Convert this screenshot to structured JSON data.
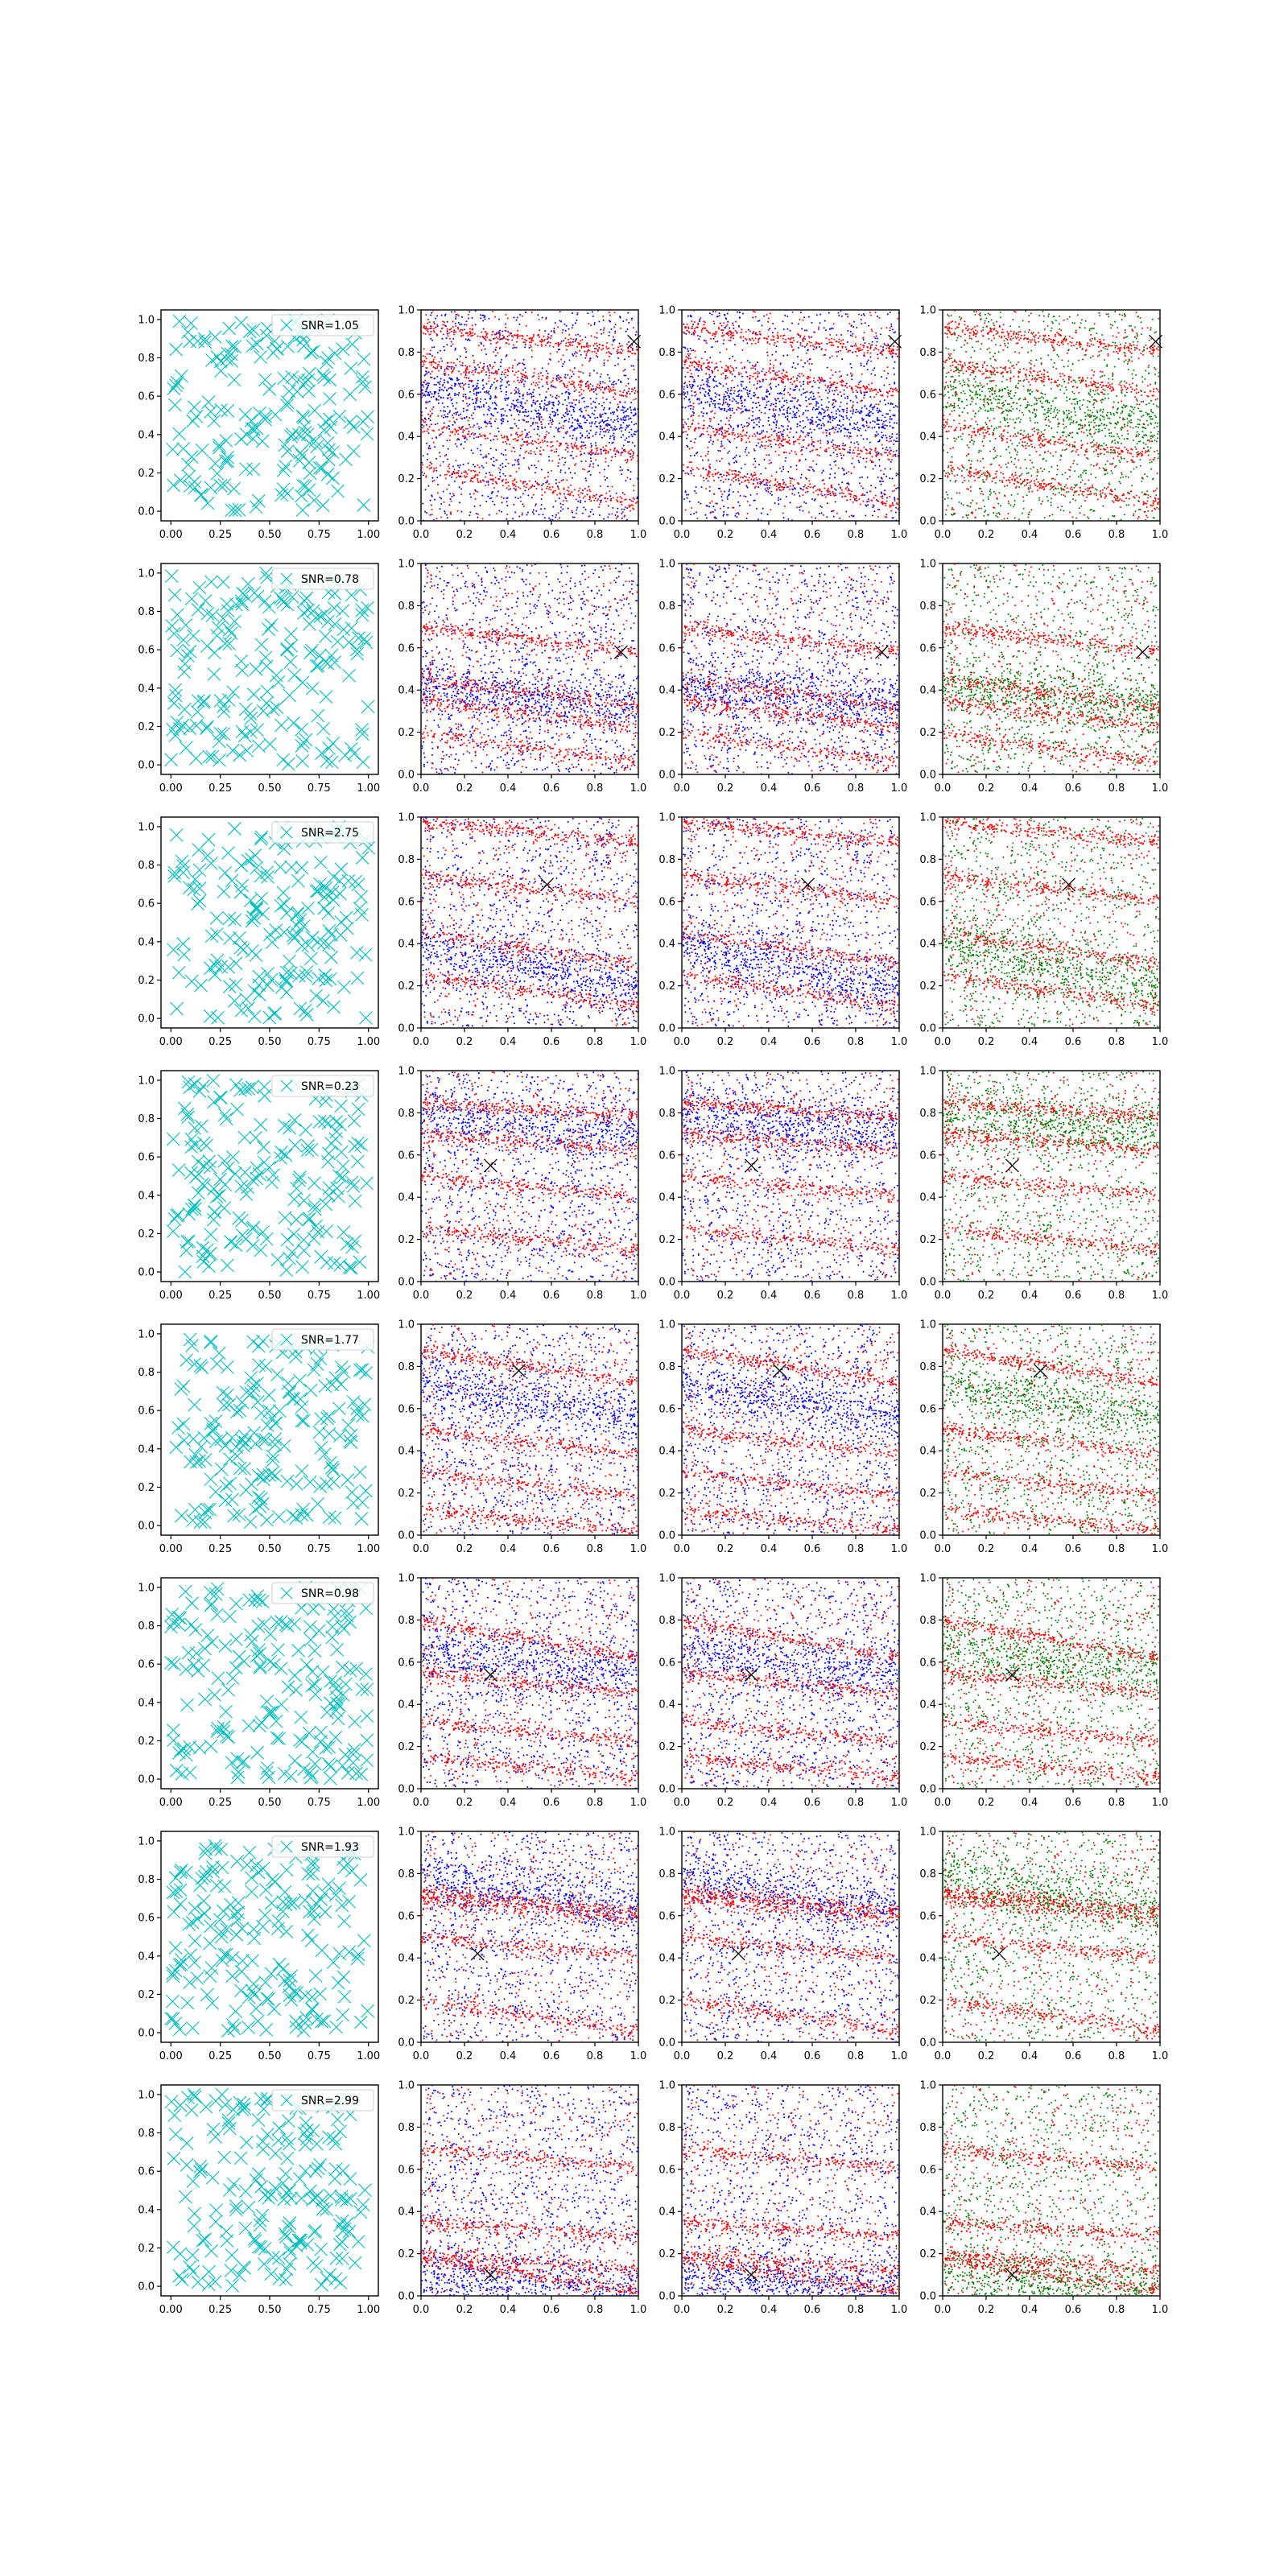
{
  "colors": {
    "sample_marker": "#00bfbf",
    "blue_points": "#0000ff",
    "red_points": "#ff0000",
    "green_points": "#008000",
    "true_marker": "#000000"
  },
  "chart_data": {
    "type": "scatter",
    "grid": false,
    "rows": 8,
    "columns": 4,
    "axis": {
      "first_column": {
        "xlim": [
          -0.05,
          1.05
        ],
        "ylim": [
          -0.05,
          1.05
        ],
        "xticks": [
          "0.00",
          "0.25",
          "0.50",
          "0.75",
          "1.00"
        ],
        "yticks": [
          "0.0",
          "0.2",
          "0.4",
          "0.6",
          "0.8",
          "1.0"
        ]
      },
      "other_columns": {
        "xlim": [
          0,
          1
        ],
        "ylim": [
          0,
          1
        ],
        "xticks": [
          "0.0",
          "0.2",
          "0.4",
          "0.6",
          "0.8",
          "1.0"
        ],
        "yticks": [
          "0.0",
          "0.2",
          "0.4",
          "0.6",
          "0.8",
          "1.0"
        ]
      }
    },
    "rows_data": [
      {
        "snr_label": "SNR=1.05",
        "true_point": [
          0.98,
          0.85
        ],
        "bands_red": [
          [
            0.92,
            0.8,
            0.9,
            0.22
          ],
          [
            0.75,
            0.6,
            0.7,
            0.15
          ],
          [
            0.45,
            0.3,
            0.55,
            0.18
          ],
          [
            0.25,
            0.08,
            0.6,
            0.2
          ]
        ],
        "bands_dense": [
          [
            0.62,
            0.45,
            0.35,
            0.25
          ]
        ]
      },
      {
        "snr_label": "SNR=0.78",
        "true_point": [
          0.92,
          0.58
        ],
        "bands_red": [
          [
            0.7,
            0.58,
            0.9,
            0.9
          ],
          [
            0.35,
            0.22,
            0.95,
            0.9
          ],
          [
            0.2,
            0.05,
            0.6,
            0.25
          ],
          [
            0.45,
            0.32,
            0.7,
            0.15
          ]
        ],
        "bands_dense": [
          [
            0.42,
            0.32,
            0.8,
            0.35
          ]
        ]
      },
      {
        "snr_label": "SNR=2.75",
        "true_point": [
          0.58,
          0.68
        ],
        "bands_red": [
          [
            0.98,
            0.88,
            0.95,
            0.45
          ],
          [
            0.72,
            0.6,
            0.6,
            0.2
          ],
          [
            0.45,
            0.3,
            0.55,
            0.2
          ],
          [
            0.25,
            0.1,
            0.55,
            0.25
          ]
        ],
        "bands_dense": [
          [
            0.4,
            0.18,
            0.4,
            0.35
          ]
        ]
      },
      {
        "snr_label": "SNR=0.23",
        "true_point": [
          0.32,
          0.55
        ],
        "bands_red": [
          [
            0.85,
            0.78,
            0.95,
            0.55
          ],
          [
            0.7,
            0.62,
            0.95,
            0.55
          ],
          [
            0.5,
            0.4,
            0.6,
            0.15
          ],
          [
            0.25,
            0.15,
            0.6,
            0.15
          ]
        ],
        "bands_dense": [
          [
            0.78,
            0.7,
            0.3,
            0.25
          ]
        ]
      },
      {
        "snr_label": "SNR=1.77",
        "true_point": [
          0.45,
          0.78
        ],
        "bands_red": [
          [
            0.88,
            0.72,
            0.75,
            0.75
          ],
          [
            0.5,
            0.38,
            0.6,
            0.25
          ],
          [
            0.3,
            0.18,
            0.6,
            0.2
          ],
          [
            0.12,
            0.02,
            0.45,
            0.2
          ]
        ],
        "bands_dense": [
          [
            0.72,
            0.55,
            0.35,
            0.25
          ]
        ]
      },
      {
        "snr_label": "SNR=0.98",
        "true_point": [
          0.32,
          0.54
        ],
        "bands_red": [
          [
            0.8,
            0.62,
            0.95,
            0.75
          ],
          [
            0.55,
            0.45,
            0.5,
            0.2
          ],
          [
            0.32,
            0.22,
            0.75,
            0.55
          ],
          [
            0.15,
            0.05,
            0.7,
            0.2
          ]
        ],
        "bands_dense": [
          [
            0.65,
            0.55,
            0.75,
            0.4
          ]
        ]
      },
      {
        "snr_label": "SNR=1.93",
        "true_point": [
          0.26,
          0.42
        ],
        "bands_red": [
          [
            0.72,
            0.62,
            0.85,
            0.9
          ],
          [
            0.68,
            0.58,
            0.15,
            0.85
          ],
          [
            0.5,
            0.4,
            0.4,
            0.15
          ],
          [
            0.2,
            0.05,
            0.55,
            0.12
          ]
        ],
        "bands_dense": [
          [
            0.78,
            0.62,
            0.2,
            0.35
          ]
        ]
      },
      {
        "snr_label": "SNR=2.99",
        "true_point": [
          0.32,
          0.1
        ],
        "bands_red": [
          [
            0.18,
            0.02,
            0.45,
            0.95
          ],
          [
            0.35,
            0.28,
            0.35,
            0.2
          ],
          [
            0.7,
            0.6,
            0.25,
            0.15
          ],
          [
            0.2,
            0.12,
            0.5,
            0.2
          ]
        ],
        "bands_dense": [
          [
            0.1,
            0.02,
            0.4,
            0.4
          ]
        ]
      }
    ]
  }
}
